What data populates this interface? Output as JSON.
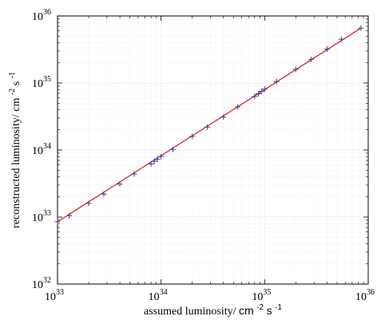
{
  "chart_data": {
    "type": "line",
    "title": "",
    "x_scale": "log",
    "y_scale": "log",
    "xlim": [
      1e+33,
      1e+36
    ],
    "ylim": [
      1e+32,
      1e+36
    ],
    "grid": true,
    "xlabel": {
      "text": "assumed luminosity/",
      "unit": "cm",
      "unit_exp": "-2",
      "unit2": "s",
      "unit2_exp": "-1"
    },
    "ylabel": {
      "text": "reconstructed luminosity/ cm",
      "unit_exp": "-2",
      "unit2": "s",
      "unit2_exp": "-1"
    },
    "x_ticks": [
      {
        "base": "10",
        "exp": "33",
        "value": 1e+33
      },
      {
        "base": "10",
        "exp": "34",
        "value": 1e+34
      },
      {
        "base": "10",
        "exp": "35",
        "value": 1e+35
      },
      {
        "base": "10",
        "exp": "36",
        "value": 1e+36
      }
    ],
    "y_ticks": [
      {
        "base": "10",
        "exp": "32",
        "value": 1e+32
      },
      {
        "base": "10",
        "exp": "33",
        "value": 1e+33
      },
      {
        "base": "10",
        "exp": "34",
        "value": 1e+34
      },
      {
        "base": "10",
        "exp": "35",
        "value": 1e+35
      },
      {
        "base": "10",
        "exp": "36",
        "value": 1e+36
      }
    ],
    "series": [
      {
        "kind": "fit-line",
        "color": "#d62728",
        "x": [
          1e+33,
          8.5e+35
        ],
        "y": [
          8.5e+32,
          6.6e+35
        ]
      },
      {
        "kind": "markers",
        "marker": "+",
        "color": "#3a3a9a",
        "x": [
          1e+33,
          1.3e+33,
          2e+33,
          2.8e+33,
          4e+33,
          5.5e+33,
          8e+33,
          8.6e+33,
          9.2e+33,
          1e+34,
          1.3e+34,
          2e+34,
          2.8e+34,
          4e+34,
          5.5e+34,
          8e+34,
          8.7e+34,
          9.3e+34,
          1e+35,
          1.3e+35,
          2e+35,
          2.8e+35,
          4e+35,
          5.5e+35,
          8.5e+35
        ],
        "y": [
          8.5e+32,
          1.05e+33,
          1.6e+33,
          2.2e+33,
          3.1e+33,
          4.4e+33,
          6.2e+33,
          6.8e+33,
          7.3e+33,
          8e+33,
          1.02e+34,
          1.6e+34,
          2.2e+34,
          3.1e+34,
          4.4e+34,
          6.3e+34,
          6.9e+34,
          7.5e+34,
          8.1e+34,
          1.05e+35,
          1.6e+35,
          2.25e+35,
          3.2e+35,
          4.5e+35,
          6.6e+35
        ]
      }
    ]
  }
}
